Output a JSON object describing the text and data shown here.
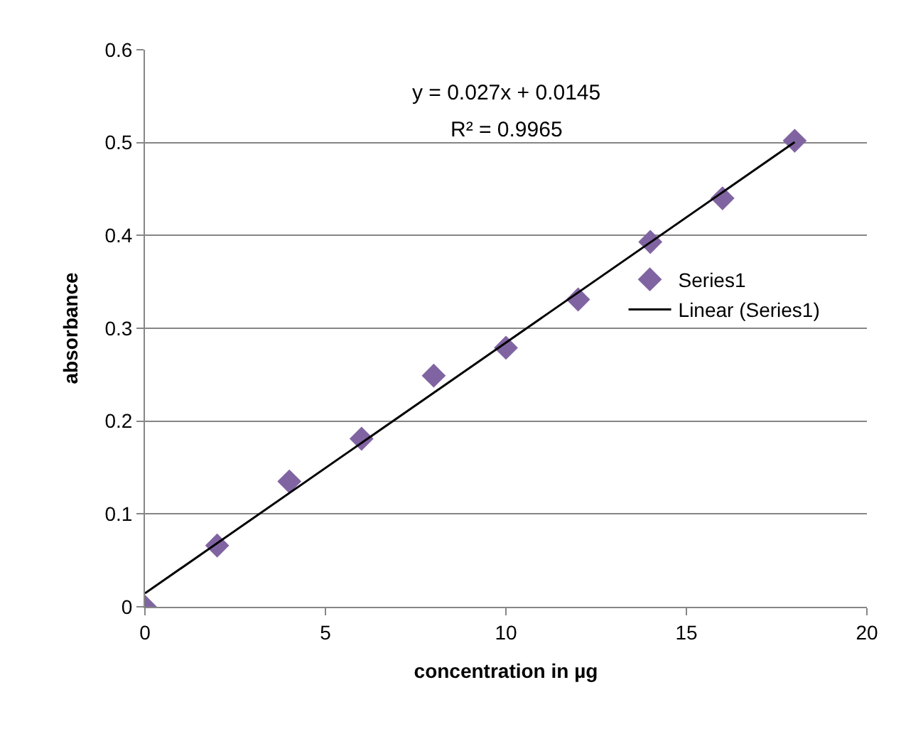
{
  "chart_data": {
    "type": "scatter",
    "xlabel": "concentration in µg",
    "ylabel": "absorbance",
    "x": [
      0,
      2,
      4,
      6,
      8,
      10,
      12,
      14,
      16,
      18
    ],
    "series": [
      {
        "name": "Series1",
        "color": "#8064a2",
        "values": [
          0,
          0.066,
          0.135,
          0.181,
          0.249,
          0.279,
          0.331,
          0.393,
          0.44,
          0.502
        ]
      },
      {
        "name": "Linear (Series1)",
        "type": "line",
        "color": "#000000",
        "marker": "none",
        "x": [
          0,
          18
        ],
        "values": [
          0.0145,
          0.5005
        ]
      }
    ],
    "annotations": [
      "y = 0.027x + 0.0145",
      "R² = 0.9965"
    ],
    "xlim": [
      0,
      20
    ],
    "xticks": [
      0,
      5,
      10,
      15,
      20
    ],
    "ylim": [
      0,
      0.6
    ],
    "yticks": [
      0,
      0.1,
      0.2,
      0.3,
      0.4,
      0.5,
      0.6
    ],
    "grid": "y",
    "legend": "right",
    "marker": "diamond",
    "line_style": "solid"
  }
}
